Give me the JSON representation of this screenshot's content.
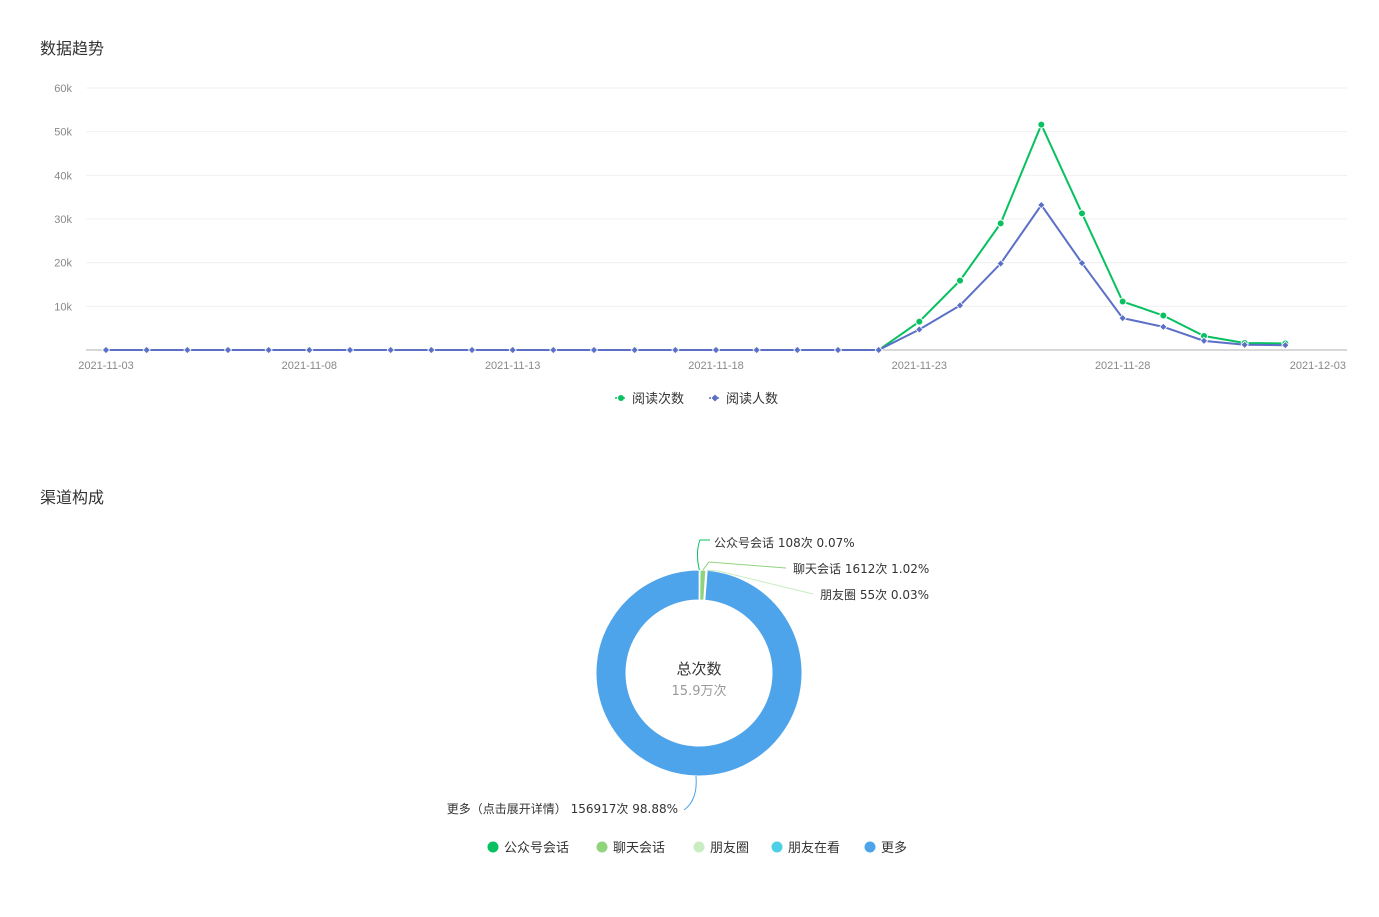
{
  "sections": {
    "trend_title": "数据趋势",
    "channel_title": "渠道构成"
  },
  "colors": {
    "green": "#07c160",
    "blue": "#5b6fc7",
    "grid": "#f0f0f0",
    "axis": "#cccccc"
  },
  "chart_data": [
    {
      "type": "line",
      "x": [
        "2021-11-03",
        "2021-11-04",
        "2021-11-05",
        "2021-11-06",
        "2021-11-07",
        "2021-11-08",
        "2021-11-09",
        "2021-11-10",
        "2021-11-11",
        "2021-11-12",
        "2021-11-13",
        "2021-11-14",
        "2021-11-15",
        "2021-11-16",
        "2021-11-17",
        "2021-11-18",
        "2021-11-19",
        "2021-11-20",
        "2021-11-21",
        "2021-11-22",
        "2021-11-23",
        "2021-11-24",
        "2021-11-25",
        "2021-11-26",
        "2021-11-27",
        "2021-11-28",
        "2021-11-29",
        "2021-11-30",
        "2021-12-01",
        "2021-12-02",
        "2021-12-03"
      ],
      "x_tick_labels": [
        "2021-11-03",
        "2021-11-08",
        "2021-11-13",
        "2021-11-18",
        "2021-11-23",
        "2021-11-28",
        "2021-12-03"
      ],
      "y_tick_labels": [
        "10k",
        "20k",
        "30k",
        "40k",
        "50k",
        "60k"
      ],
      "ylim": [
        0,
        60000
      ],
      "grid": true,
      "legend_position": "bottom",
      "series": [
        {
          "name": "阅读次数",
          "color": "#07c160",
          "marker": "circle",
          "values": [
            0,
            0,
            0,
            0,
            0,
            0,
            0,
            0,
            0,
            0,
            0,
            0,
            0,
            0,
            0,
            0,
            0,
            0,
            0,
            0,
            6500,
            15900,
            29000,
            51600,
            31300,
            11100,
            7900,
            3200,
            1600,
            1500,
            null
          ]
        },
        {
          "name": "阅读人数",
          "color": "#5b6fc7",
          "marker": "diamond",
          "values": [
            0,
            0,
            0,
            0,
            0,
            0,
            0,
            0,
            0,
            0,
            0,
            0,
            0,
            0,
            0,
            0,
            0,
            0,
            0,
            0,
            4700,
            10200,
            19800,
            33200,
            19900,
            7300,
            5300,
            2100,
            1200,
            1100,
            null
          ]
        }
      ]
    },
    {
      "type": "pie",
      "donut": true,
      "center_title": "总次数",
      "center_value": "15.9万次",
      "legend_position": "bottom",
      "slices": [
        {
          "name": "公众号会话",
          "value": 108,
          "label": "公众号会话 108次 0.07%",
          "color": "#07c160"
        },
        {
          "name": "聊天会话",
          "value": 1612,
          "label": "聊天会话 1612次 1.02%",
          "color": "#8fd47d"
        },
        {
          "name": "朋友圈",
          "value": 55,
          "label": "朋友圈 55次 0.03%",
          "color": "#c9ecc3"
        },
        {
          "name": "朋友在看",
          "value": 0,
          "label": "",
          "color": "#4dcfe6"
        },
        {
          "name": "更多",
          "value": 156917,
          "label": "更多（点击展开详情） 156917次 98.88%",
          "color": "#4ea4ea"
        }
      ]
    }
  ]
}
